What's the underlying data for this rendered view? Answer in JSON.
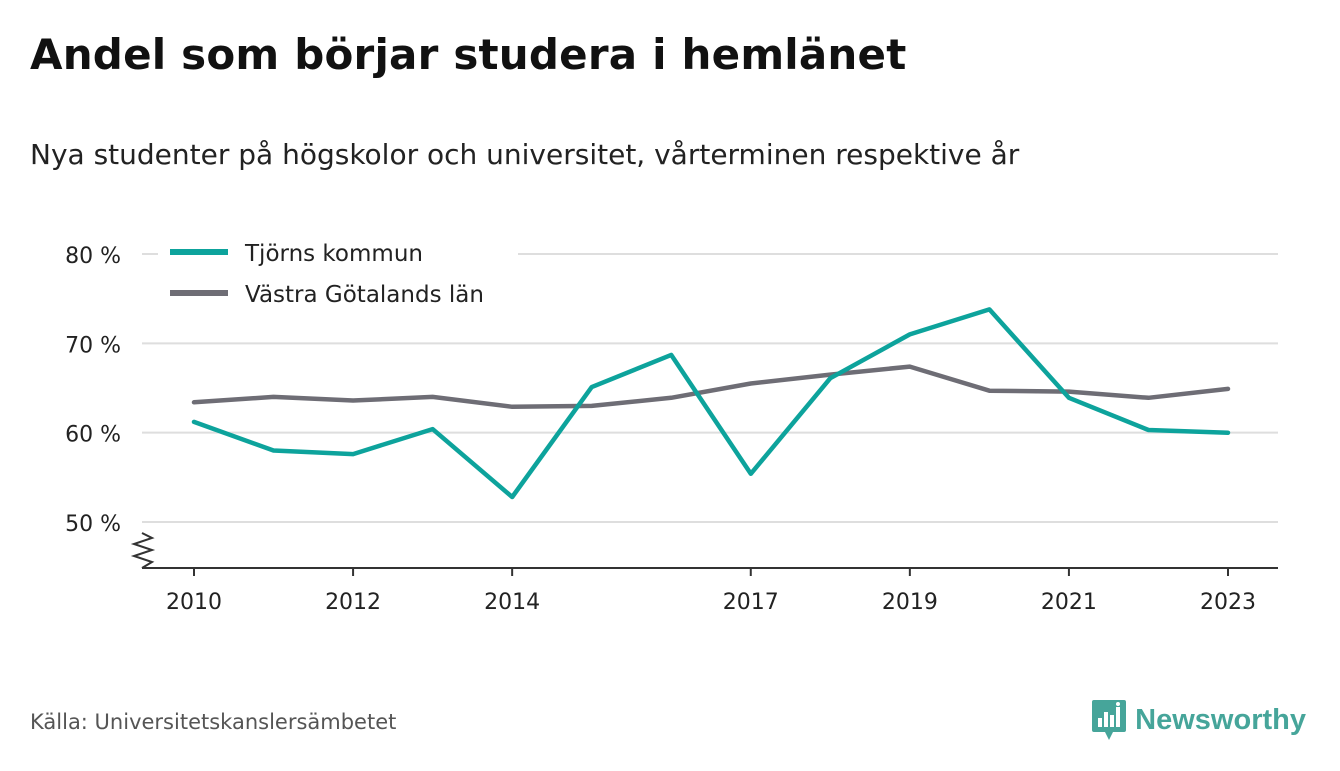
{
  "header": {
    "title": "Andel som börjar studera i hemlänet",
    "subtitle": "Nya studenter på högskolor och universitet, vårterminen respektive år"
  },
  "footer": {
    "source": "Källa: Universitetskanslersämbetet",
    "brand": "Newsworthy",
    "brand_color": "#46a59a"
  },
  "icons": {
    "brand_logo": "newsworthy-logo-icon",
    "axis_break": "axis-break-icon"
  },
  "chart_data": {
    "type": "line",
    "title": "Andel som börjar studera i hemlänet",
    "subtitle": "Nya studenter på högskolor och universitet, vårterminen respektive år",
    "xlabel": "",
    "ylabel": "",
    "x": [
      2010,
      2011,
      2012,
      2013,
      2014,
      2015,
      2016,
      2017,
      2018,
      2019,
      2020,
      2021,
      2022,
      2023
    ],
    "x_ticks": [
      2010,
      2012,
      2014,
      2017,
      2019,
      2021,
      2023
    ],
    "y_ticks": [
      50,
      60,
      70,
      80
    ],
    "y_tick_labels": [
      "50 %",
      "60 %",
      "70 %",
      "80 %"
    ],
    "ylim": [
      45,
      80
    ],
    "xlim": [
      2009.4,
      2023.7
    ],
    "y_axis_break": true,
    "grid": "horizontal",
    "legend_position": "top-left",
    "series": [
      {
        "name": "Tjörns kommun",
        "color": "#0da39c",
        "values": [
          61.2,
          58.0,
          57.6,
          60.4,
          52.8,
          65.1,
          68.7,
          55.4,
          66.1,
          71.0,
          73.8,
          63.9,
          60.3,
          60.0
        ]
      },
      {
        "name": "Västra Götalands län",
        "color": "#6e6d75",
        "values": [
          63.4,
          64.0,
          63.6,
          64.0,
          62.9,
          63.0,
          63.9,
          65.5,
          66.5,
          67.4,
          64.7,
          64.6,
          63.9,
          64.9
        ]
      }
    ]
  }
}
